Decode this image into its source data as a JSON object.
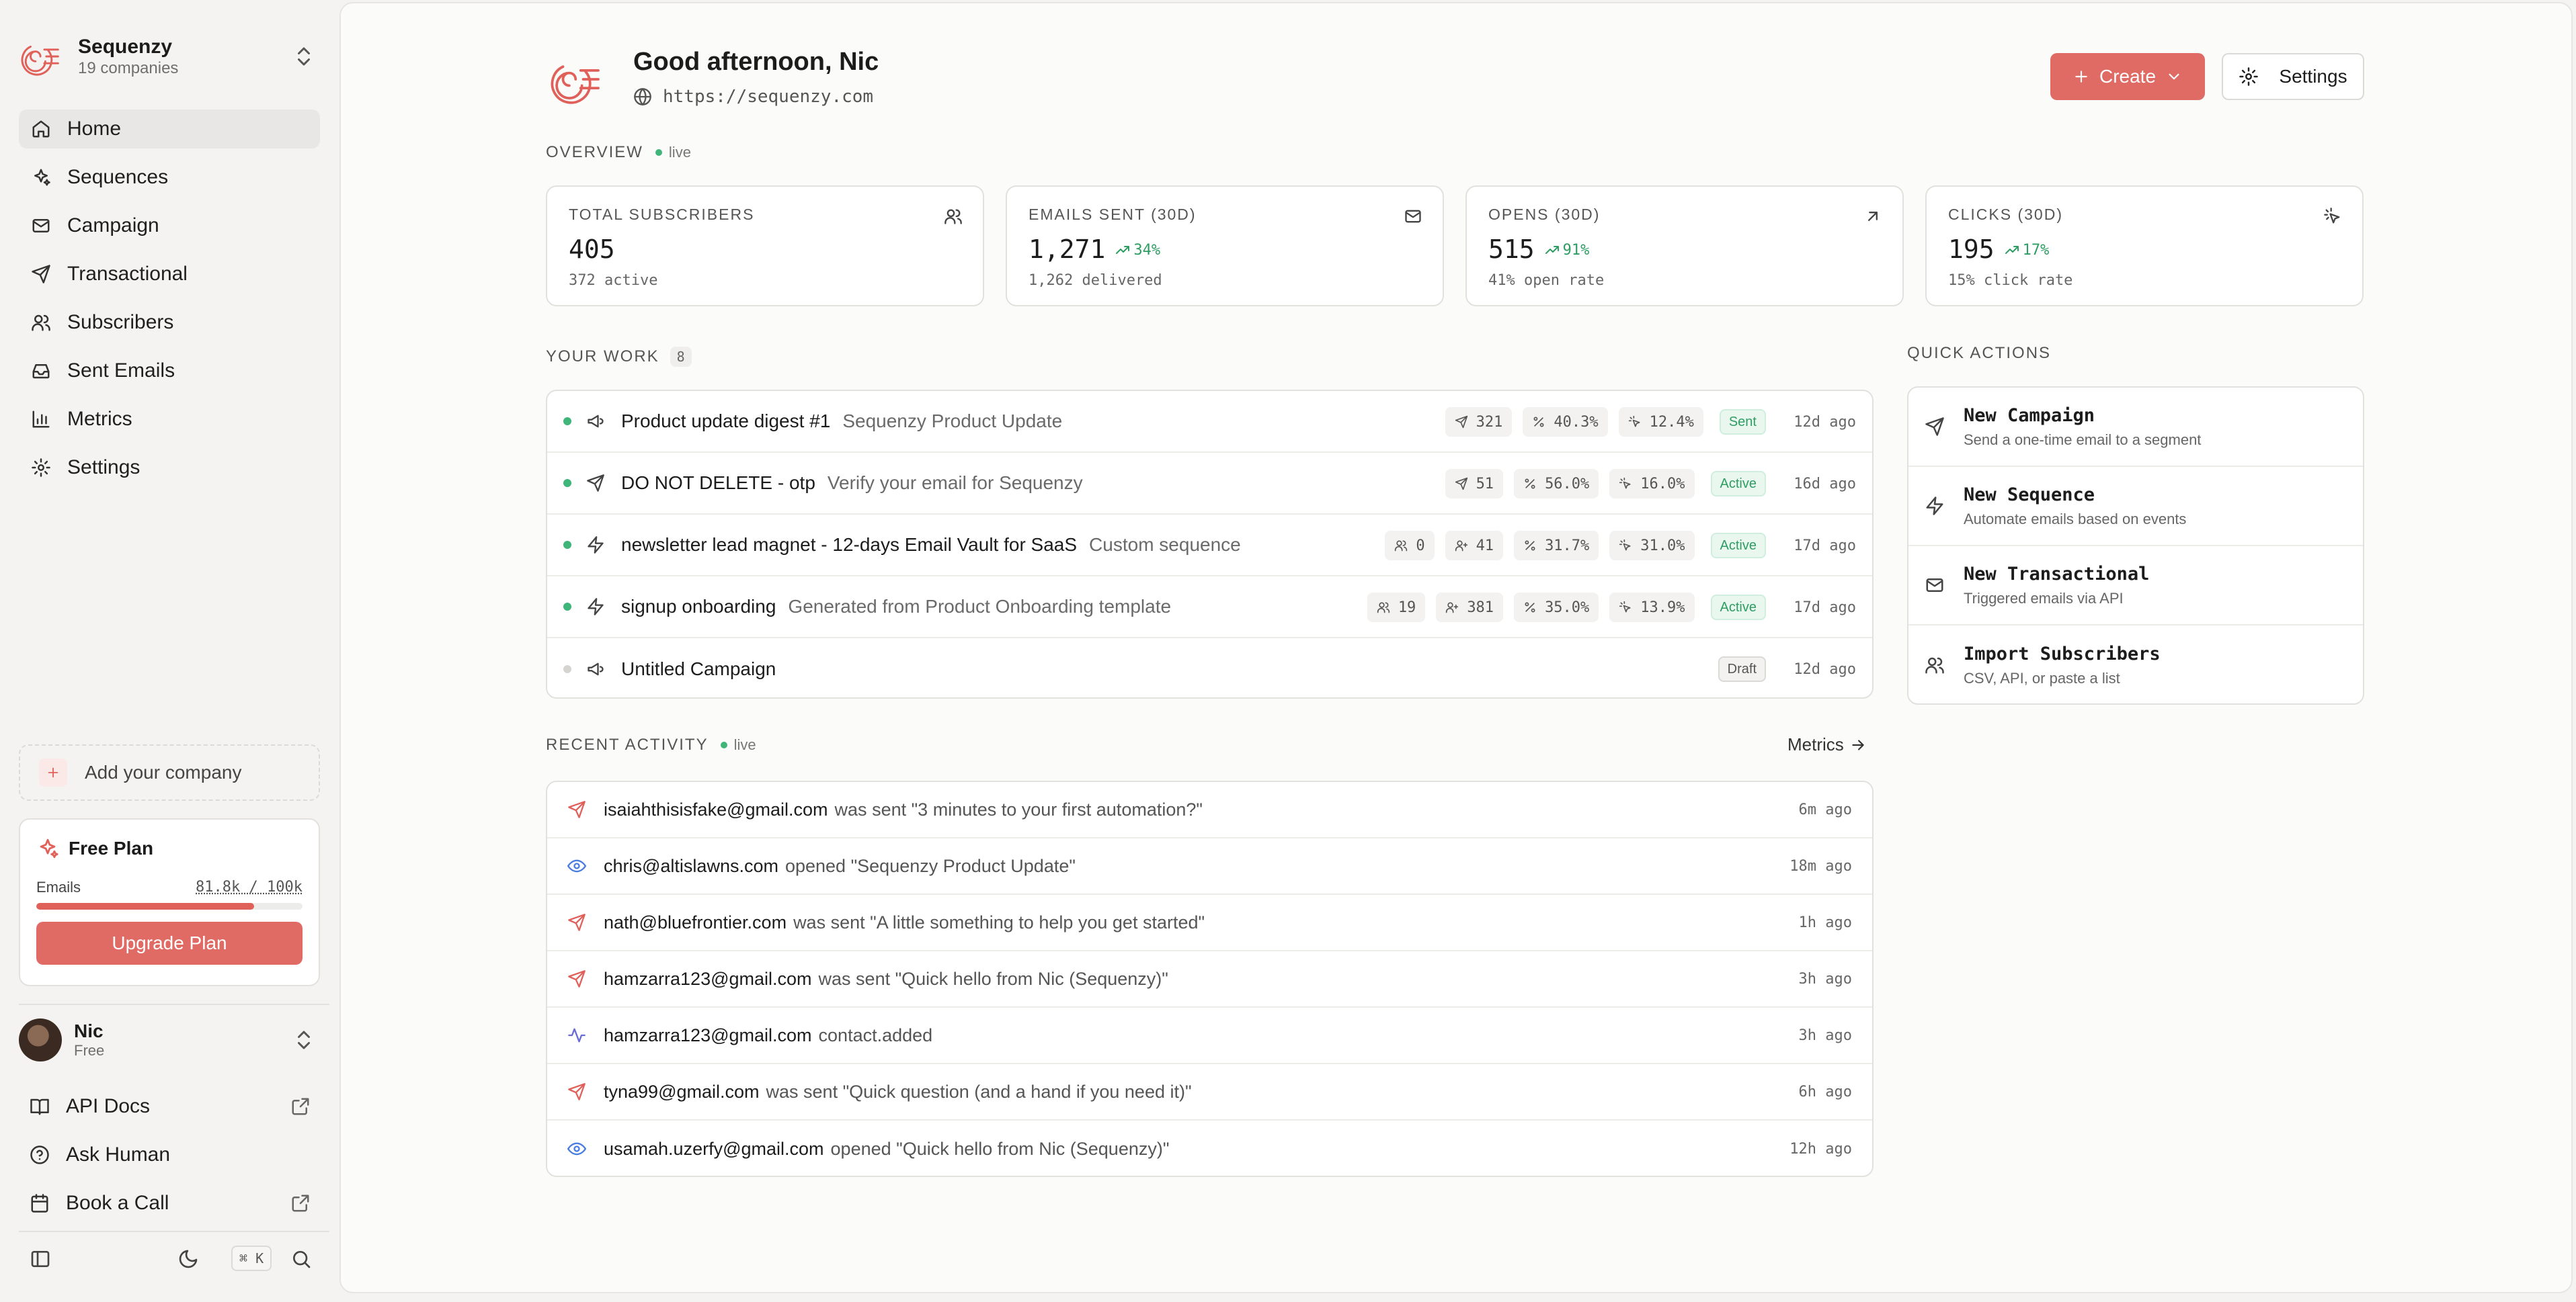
{
  "sidebar": {
    "brand_name": "Sequenzy",
    "brand_sub": "19 companies",
    "nav": [
      {
        "label": "Home",
        "icon": "home-icon"
      },
      {
        "label": "Sequences",
        "icon": "sparkles-icon"
      },
      {
        "label": "Campaign",
        "icon": "mail-icon"
      },
      {
        "label": "Transactional",
        "icon": "send-icon"
      },
      {
        "label": "Subscribers",
        "icon": "users-icon"
      },
      {
        "label": "Sent Emails",
        "icon": "inbox-icon"
      },
      {
        "label": "Metrics",
        "icon": "bar-chart-icon"
      },
      {
        "label": "Settings",
        "icon": "gear-icon"
      }
    ],
    "add_company": "Add your company",
    "plan": {
      "name": "Free Plan",
      "emails_label": "Emails",
      "usage": "81.8k / 100k",
      "usage_fraction": 0.818,
      "upgrade_label": "Upgrade Plan"
    },
    "user": {
      "name": "Nic",
      "plan": "Free"
    },
    "links": [
      {
        "label": "API Docs",
        "icon": "book-icon",
        "external": true
      },
      {
        "label": "Ask Human",
        "icon": "help-circle-icon",
        "external": false
      },
      {
        "label": "Book a Call",
        "icon": "calendar-icon",
        "external": true
      }
    ],
    "shortcut": "⌘ K"
  },
  "header": {
    "greeting": "Good afternoon, Nic",
    "site": "https://sequenzy.com",
    "create_label": "Create",
    "settings_label": "Settings"
  },
  "overview": {
    "label": "OVERVIEW",
    "live": "live",
    "stats": [
      {
        "label": "TOTAL SUBSCRIBERS",
        "value": "405",
        "delta": "",
        "sub": "372 active",
        "icon": "users-icon"
      },
      {
        "label": "EMAILS SENT (30D)",
        "value": "1,271",
        "delta": "34%",
        "sub": "1,262 delivered",
        "icon": "mail-icon"
      },
      {
        "label": "OPENS (30D)",
        "value": "515",
        "delta": "91%",
        "sub": "41% open rate",
        "icon": "arrow-up-right-icon"
      },
      {
        "label": "CLICKS (30D)",
        "value": "195",
        "delta": "17%",
        "sub": "15% click rate",
        "icon": "click-icon"
      }
    ]
  },
  "work": {
    "label": "YOUR WORK",
    "count": "8",
    "rows": [
      {
        "title": "Product update digest #1",
        "sub": "Sequenzy Product Update",
        "type": "campaign",
        "dot": "green",
        "chips": [
          {
            "icon": "send",
            "v": "321"
          },
          {
            "icon": "percent",
            "v": "40.3%"
          },
          {
            "icon": "click",
            "v": "12.4%"
          }
        ],
        "status": "Sent",
        "time": "12d ago"
      },
      {
        "title": "DO NOT DELETE - otp",
        "sub": "Verify your email for Sequenzy",
        "type": "transactional",
        "dot": "green",
        "chips": [
          {
            "icon": "send",
            "v": "51"
          },
          {
            "icon": "percent",
            "v": "56.0%"
          },
          {
            "icon": "click",
            "v": "16.0%"
          }
        ],
        "status": "Active",
        "time": "16d ago"
      },
      {
        "title": "newsletter lead magnet - 12-days Email Vault for SaaS",
        "sub": "Custom sequence",
        "type": "sequence",
        "dot": "green",
        "chips": [
          {
            "icon": "users",
            "v": "0"
          },
          {
            "icon": "user-plus",
            "v": "41"
          },
          {
            "icon": "percent",
            "v": "31.7%"
          },
          {
            "icon": "click",
            "v": "31.0%"
          }
        ],
        "status": "Active",
        "time": "17d ago"
      },
      {
        "title": "signup onboarding",
        "sub": "Generated from Product Onboarding template",
        "type": "sequence",
        "dot": "green",
        "chips": [
          {
            "icon": "users",
            "v": "19"
          },
          {
            "icon": "user-plus",
            "v": "381"
          },
          {
            "icon": "percent",
            "v": "35.0%"
          },
          {
            "icon": "click",
            "v": "13.9%"
          }
        ],
        "status": "Active",
        "time": "17d ago"
      },
      {
        "title": "Untitled Campaign",
        "sub": "",
        "type": "campaign",
        "dot": "grey",
        "chips": [],
        "status": "Draft",
        "time": "12d ago"
      }
    ]
  },
  "quick_actions": {
    "label": "QUICK ACTIONS",
    "items": [
      {
        "title": "New Campaign",
        "desc": "Send a one-time email to a segment",
        "icon": "send-icon"
      },
      {
        "title": "New Sequence",
        "desc": "Automate emails based on events",
        "icon": "zap-icon"
      },
      {
        "title": "New Transactional",
        "desc": "Triggered emails via API",
        "icon": "mail-icon"
      },
      {
        "title": "Import Subscribers",
        "desc": "CSV, API, or paste a list",
        "icon": "users-icon"
      }
    ]
  },
  "activity": {
    "label": "RECENT ACTIVITY",
    "live": "live",
    "metrics_link": "Metrics",
    "rows": [
      {
        "type": "sent",
        "email": "isaiahthisisfake@gmail.com",
        "action": "was sent \"3 minutes to your first automation?\"",
        "time": "6m ago"
      },
      {
        "type": "open",
        "email": "chris@altislawns.com",
        "action": "opened \"Sequenzy Product Update\"",
        "time": "18m ago"
      },
      {
        "type": "sent",
        "email": "nath@bluefrontier.com",
        "action": "was sent \"A little something to help you get started\"",
        "time": "1h ago"
      },
      {
        "type": "sent",
        "email": "hamzarra123@gmail.com",
        "action": "was sent \"Quick hello from Nic (Sequenzy)\"",
        "time": "3h ago"
      },
      {
        "type": "event",
        "email": "hamzarra123@gmail.com",
        "action": "contact.added",
        "time": "3h ago"
      },
      {
        "type": "sent",
        "email": "tyna99@gmail.com",
        "action": "was sent \"Quick question (and a hand if you need it)\"",
        "time": "6h ago"
      },
      {
        "type": "open",
        "email": "usamah.uzerfy@gmail.com",
        "action": "opened \"Quick hello from Nic (Sequenzy)\"",
        "time": "12h ago"
      }
    ]
  }
}
